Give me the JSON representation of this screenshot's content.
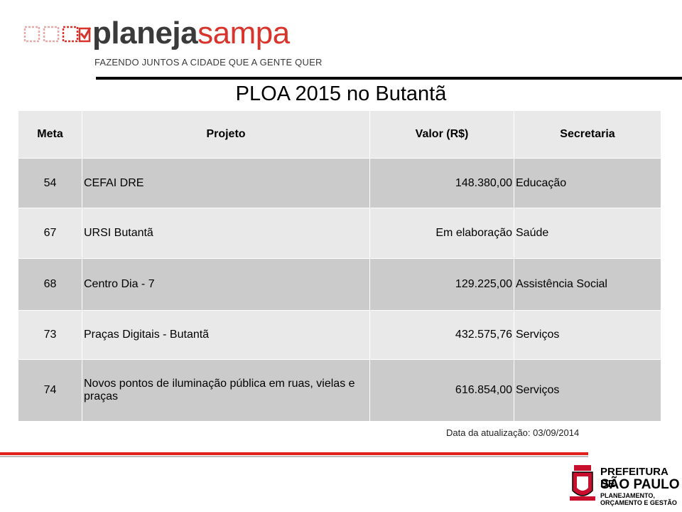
{
  "logo": {
    "word_dark": "planeja",
    "word_red": "sampa",
    "tagline": "FAZENDO JUNTOS A CIDADE QUE A GENTE QUER"
  },
  "title": "PLOA 2015 no Butantã",
  "table": {
    "header": [
      "Meta",
      "Projeto",
      "Valor (R$)",
      "Secretaria"
    ],
    "rows": [
      [
        "54",
        "CEFAI DRE",
        "148.380,00",
        "Educação"
      ],
      [
        "67",
        "URSI Butantã",
        "Em elaboração",
        "Saúde"
      ],
      [
        "68",
        "Centro Dia - 7",
        "129.225,00",
        "Assistência Social"
      ],
      [
        "73",
        "Praças Digitais - Butantã",
        "432.575,76",
        "Serviços"
      ],
      [
        "74",
        "Novos pontos de iluminação pública em ruas, vielas e praças",
        "616.854,00",
        "Serviços"
      ]
    ]
  },
  "footer": {
    "date": "Data da atualização: 03/09/2014",
    "org_line1": "PREFEITURA DE",
    "org_line2": "SÃO PAULO",
    "org_line3": "PLANEJAMENTO, ORÇAMENTO E GESTÃO"
  }
}
